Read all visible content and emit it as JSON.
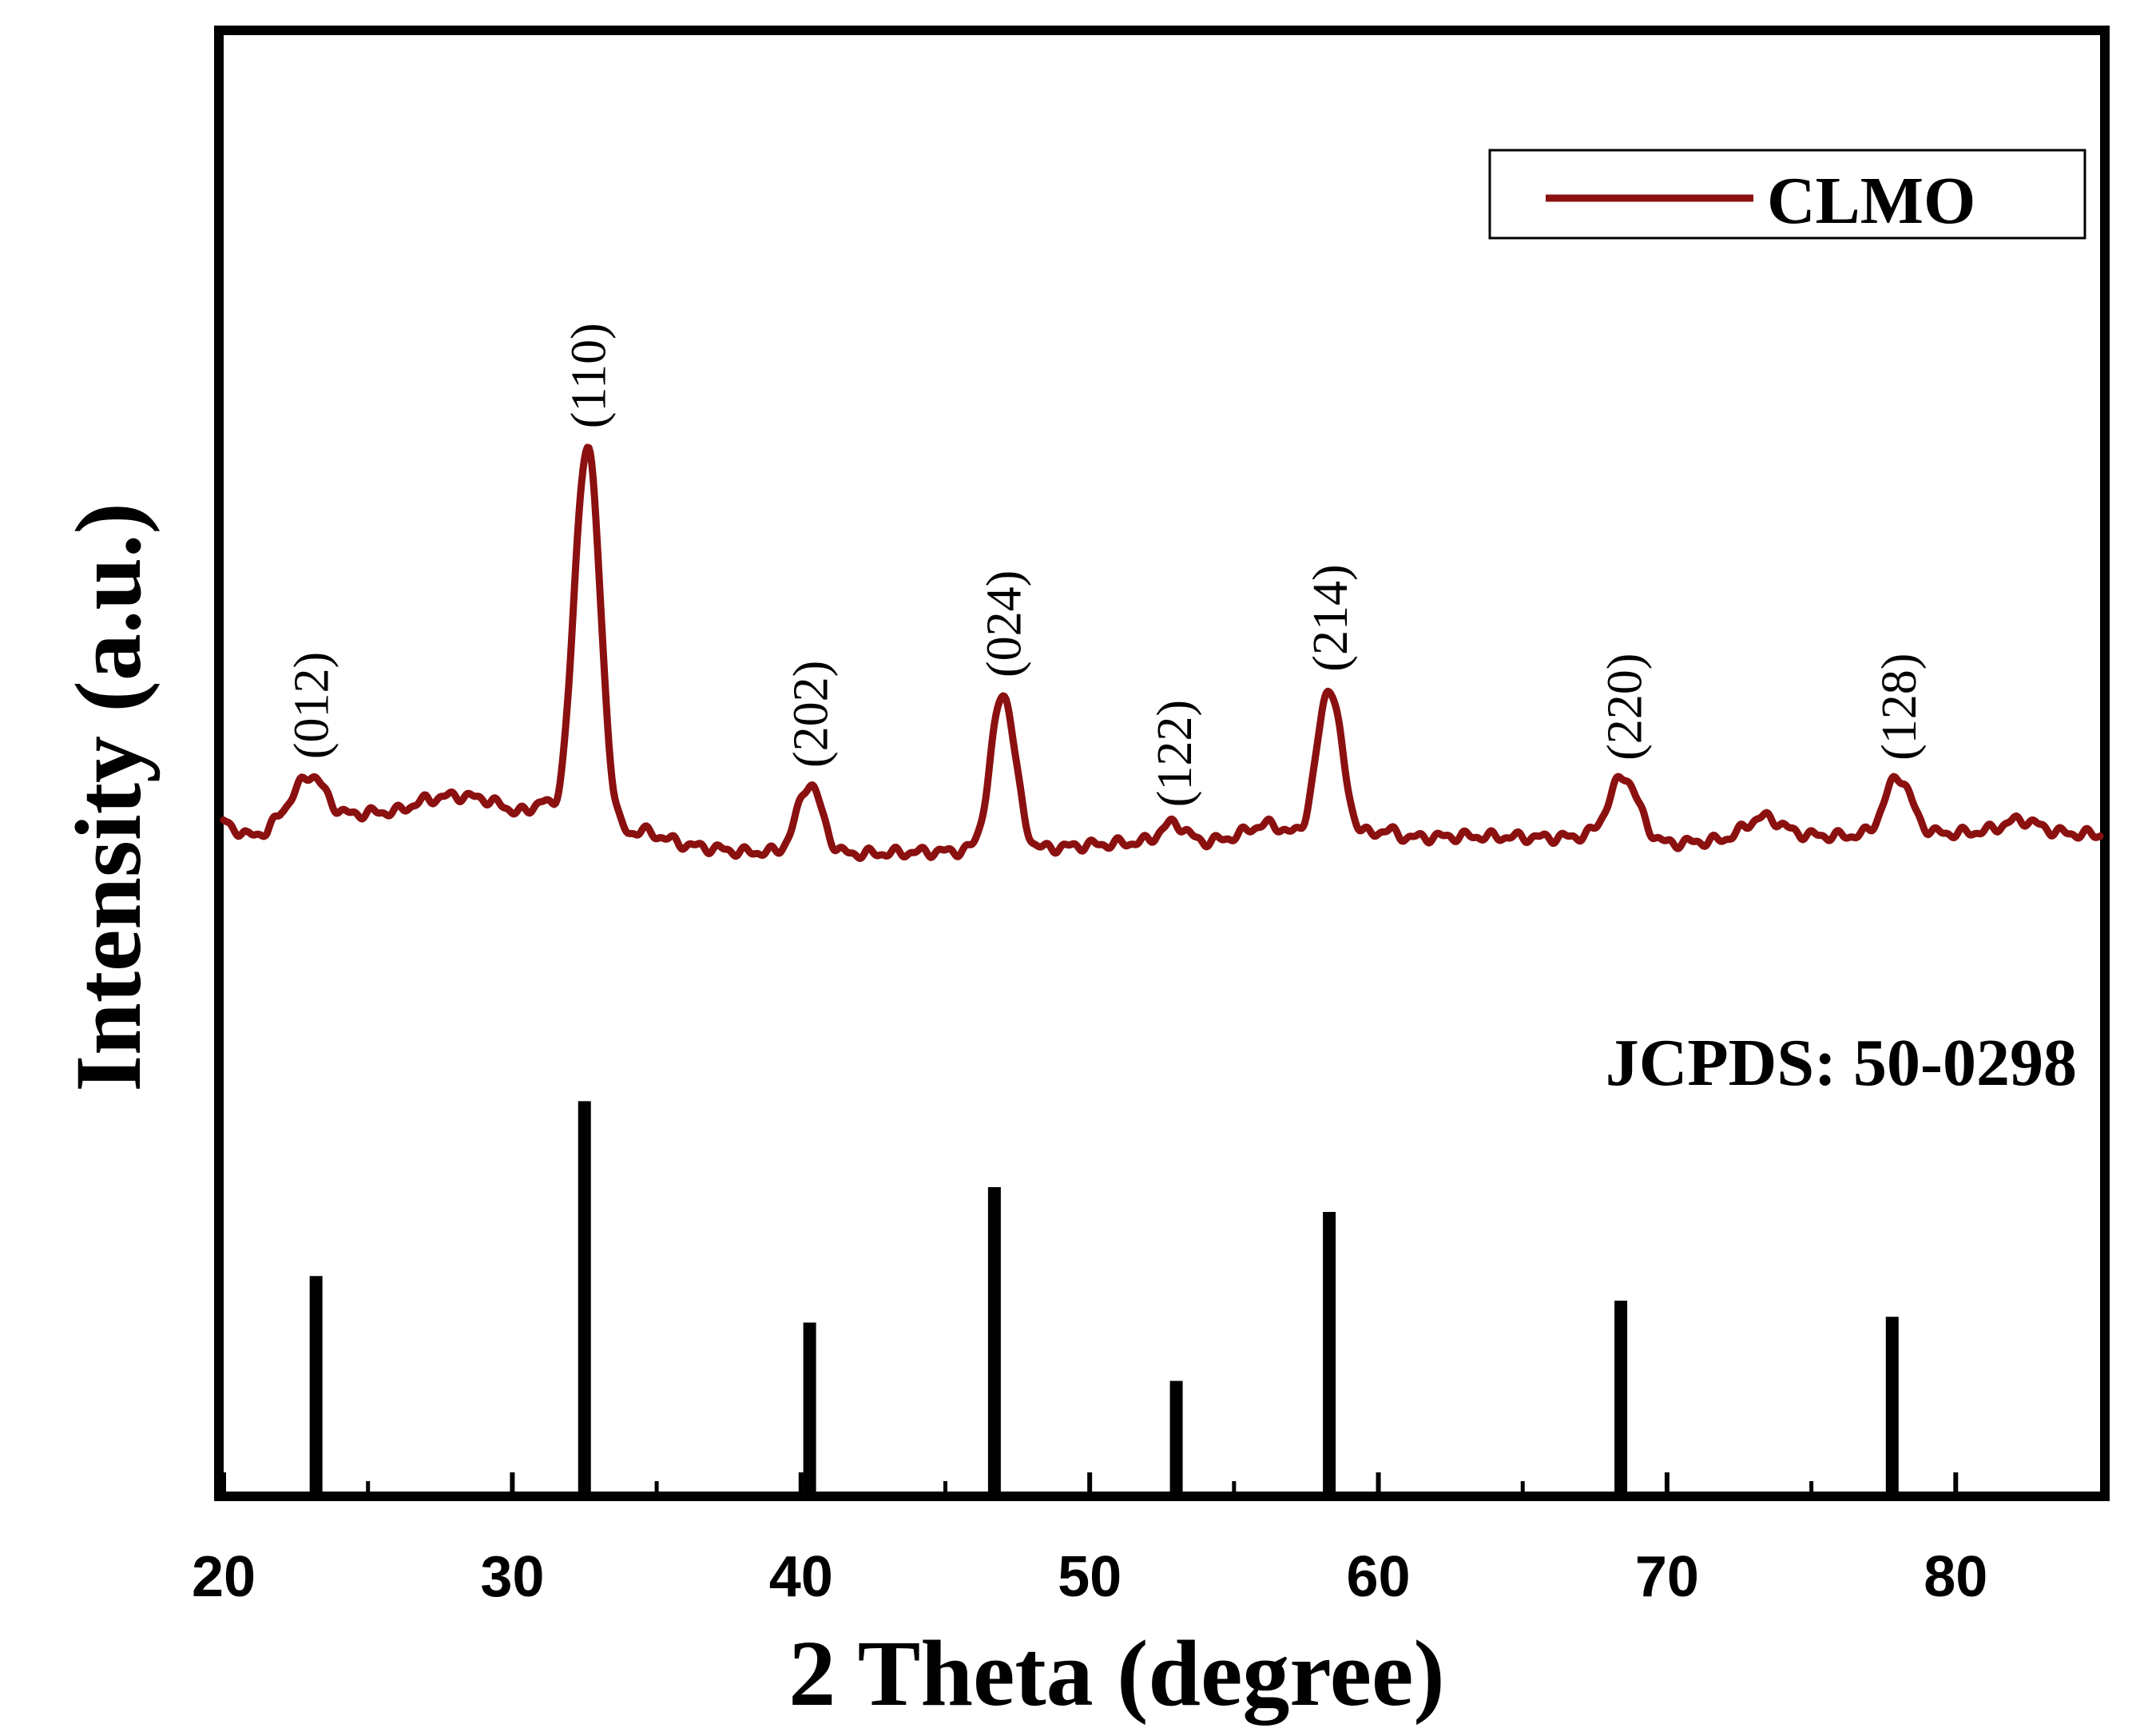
{
  "chart_data": {
    "type": "line",
    "title": "",
    "xlabel": "2 Theta (degree)",
    "ylabel": "Intensity (a.u.)",
    "xlim": [
      20,
      85
    ],
    "ylim": [
      0,
      100
    ],
    "xticks": [
      20,
      30,
      40,
      50,
      60,
      70,
      80
    ],
    "grid": false,
    "legend": {
      "position": "top-right",
      "entries": [
        {
          "name": "CLMO",
          "color": "#8b1010"
        }
      ]
    },
    "series": [
      {
        "name": "CLMO",
        "color": "#8b1010",
        "baseline": [
          [
            20.0,
            46.0
          ],
          [
            20.8,
            45.0
          ],
          [
            21.5,
            45.3
          ],
          [
            22.0,
            46.4
          ],
          [
            24.0,
            46.4
          ],
          [
            25.0,
            46.6
          ],
          [
            26.0,
            46.7
          ],
          [
            27.0,
            47.5
          ],
          [
            28.0,
            47.8
          ],
          [
            29.0,
            47.6
          ],
          [
            30.0,
            46.8
          ],
          [
            31.0,
            46.3
          ],
          [
            32.0,
            45.8
          ],
          [
            33.5,
            44.8
          ],
          [
            34.5,
            45.4
          ],
          [
            36.0,
            44.4
          ],
          [
            38.0,
            43.9
          ],
          [
            39.5,
            43.9
          ],
          [
            41.0,
            43.8
          ],
          [
            42.5,
            43.8
          ],
          [
            44.0,
            43.9
          ],
          [
            46.0,
            44.0
          ],
          [
            48.0,
            44.1
          ],
          [
            50.0,
            44.4
          ],
          [
            52.0,
            44.6
          ],
          [
            54.0,
            44.6
          ],
          [
            55.5,
            45.0
          ],
          [
            57.0,
            44.8
          ],
          [
            59.0,
            45.2
          ],
          [
            61.0,
            44.9
          ],
          [
            63.0,
            45.0
          ],
          [
            66.0,
            44.9
          ],
          [
            67.5,
            45.0
          ],
          [
            70.0,
            44.5
          ],
          [
            72.0,
            44.7
          ],
          [
            74.0,
            45.1
          ],
          [
            76.0,
            45.0
          ],
          [
            78.0,
            45.2
          ],
          [
            80.0,
            45.2
          ],
          [
            82.0,
            45.4
          ],
          [
            83.5,
            45.2
          ],
          [
            85.0,
            45.1
          ]
        ],
        "peaks": [
          {
            "x": 23.0,
            "y": 49.2,
            "width": 0.5,
            "label": "(012)"
          },
          {
            "x": 31.0,
            "y": 47.4,
            "width": 0.25,
            "label": ""
          },
          {
            "x": 32.6,
            "y": 71.9,
            "width": 0.45,
            "label": "(110)"
          },
          {
            "x": 40.3,
            "y": 48.6,
            "width": 0.42,
            "label": "(202)"
          },
          {
            "x": 47.0,
            "y": 54.8,
            "width": 0.42,
            "label": "(024)"
          },
          {
            "x": 52.9,
            "y": 45.9,
            "width": 0.42,
            "label": "(122)"
          },
          {
            "x": 56.2,
            "y": 45.8,
            "width": 0.6,
            "label": ""
          },
          {
            "x": 58.3,
            "y": 55.2,
            "width": 0.42,
            "label": "(214)"
          },
          {
            "x": 60.3,
            "y": 45.4,
            "width": 0.3,
            "label": ""
          },
          {
            "x": 68.5,
            "y": 49.1,
            "width": 0.5,
            "label": "(220)"
          },
          {
            "x": 73.3,
            "y": 46.3,
            "width": 0.6,
            "label": ""
          },
          {
            "x": 78.0,
            "y": 49.1,
            "width": 0.45,
            "label": "(128)"
          },
          {
            "x": 82.3,
            "y": 46.1,
            "width": 0.6,
            "label": ""
          }
        ]
      }
    ],
    "reference": {
      "name": "JCPDS: 50-0298",
      "color": "#000000",
      "sticks": [
        {
          "x": 23.2,
          "y": 14.8
        },
        {
          "x": 32.5,
          "y": 26.8
        },
        {
          "x": 40.3,
          "y": 11.6
        },
        {
          "x": 46.7,
          "y": 20.9
        },
        {
          "x": 53.0,
          "y": 7.6
        },
        {
          "x": 58.3,
          "y": 19.2
        },
        {
          "x": 68.4,
          "y": 13.1
        },
        {
          "x": 77.8,
          "y": 12.0
        }
      ]
    }
  }
}
